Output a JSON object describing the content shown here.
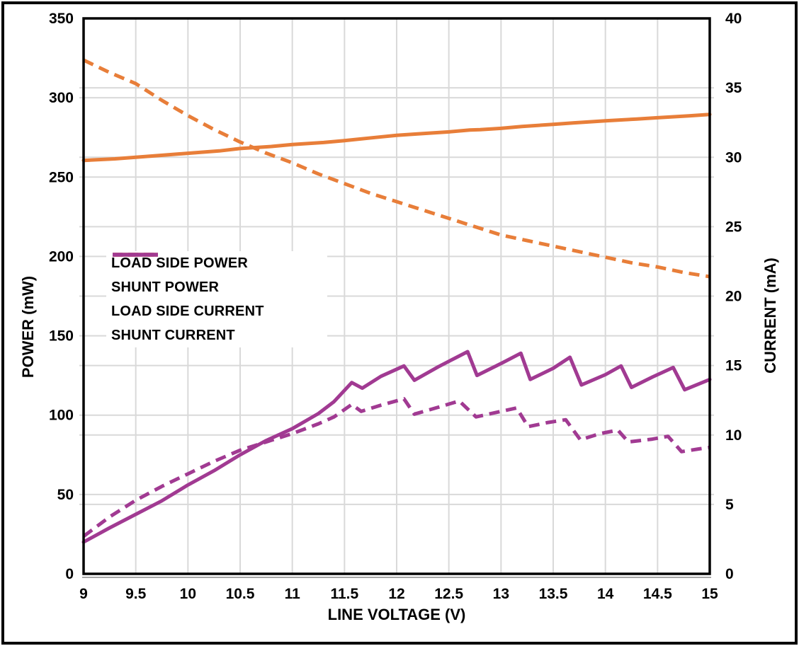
{
  "chart_data": {
    "type": "line",
    "title": "",
    "xlabel": "LINE VOLTAGE (V)",
    "x_range": [
      9,
      15
    ],
    "x_ticks": [
      "9",
      "9.5",
      "10",
      "10.5",
      "11",
      "11.5",
      "12",
      "12.5",
      "13",
      "13.5",
      "14",
      "14.5",
      "15"
    ],
    "y_left": {
      "label": "POWER (mW)",
      "range": [
        0,
        350
      ],
      "ticks": [
        0,
        50,
        100,
        150,
        200,
        250,
        300,
        350
      ]
    },
    "y_right": {
      "label": "CURRENT (mA)",
      "range": [
        0,
        40
      ],
      "ticks": [
        0,
        5,
        10,
        15,
        20,
        25,
        30,
        35,
        40
      ]
    },
    "grid": true,
    "legend_position": "center-left",
    "series": [
      {
        "name": "LOAD SIDE POWER",
        "axis": "left",
        "style": "solid",
        "color": "#E87E39",
        "points": [
          [
            9,
            260.5
          ],
          [
            9.3,
            261.5
          ],
          [
            9.5,
            262.5
          ],
          [
            9.8,
            264
          ],
          [
            10,
            265
          ],
          [
            10.3,
            266.5
          ],
          [
            10.5,
            268
          ],
          [
            10.8,
            269.3
          ],
          [
            11,
            270.5
          ],
          [
            11.3,
            271.8
          ],
          [
            11.5,
            273
          ],
          [
            11.8,
            275
          ],
          [
            12,
            276.3
          ],
          [
            12.2,
            277.2
          ],
          [
            12.5,
            278.5
          ],
          [
            12.7,
            279.7
          ],
          [
            12.8,
            279.9
          ],
          [
            13,
            280.7
          ],
          [
            13.2,
            281.9
          ],
          [
            13.5,
            283.2
          ],
          [
            13.7,
            284.2
          ],
          [
            14,
            285.5
          ],
          [
            14.3,
            286.6
          ],
          [
            14.5,
            287.4
          ],
          [
            14.8,
            288.6
          ],
          [
            15,
            289.5
          ]
        ]
      },
      {
        "name": "SHUNT POWER",
        "axis": "left",
        "style": "solid",
        "color": "#A13A92",
        "points": [
          [
            9,
            20
          ],
          [
            9.25,
            29
          ],
          [
            9.5,
            37.5
          ],
          [
            9.75,
            46
          ],
          [
            10,
            56
          ],
          [
            10.25,
            65
          ],
          [
            10.5,
            75
          ],
          [
            10.75,
            84
          ],
          [
            11,
            91.5
          ],
          [
            11.25,
            101
          ],
          [
            11.4,
            108.5
          ],
          [
            11.57,
            120.5
          ],
          [
            11.67,
            117
          ],
          [
            11.85,
            124.5
          ],
          [
            12.07,
            131
          ],
          [
            12.17,
            122
          ],
          [
            12.4,
            130.5
          ],
          [
            12.68,
            140
          ],
          [
            12.77,
            125
          ],
          [
            13,
            132.5
          ],
          [
            13.19,
            139
          ],
          [
            13.28,
            122.5
          ],
          [
            13.5,
            129.5
          ],
          [
            13.66,
            136.5
          ],
          [
            13.77,
            119
          ],
          [
            14,
            125.5
          ],
          [
            14.15,
            131
          ],
          [
            14.25,
            117.5
          ],
          [
            14.45,
            124
          ],
          [
            14.65,
            130
          ],
          [
            14.76,
            116
          ],
          [
            15,
            122.5
          ]
        ]
      },
      {
        "name": "LOAD SIDE CURRENT",
        "axis": "right",
        "style": "dashed",
        "color": "#E87E39",
        "points": [
          [
            9,
            37.0
          ],
          [
            9.25,
            36.1
          ],
          [
            9.5,
            35.3
          ],
          [
            9.75,
            34.1
          ],
          [
            10,
            33.0
          ],
          [
            10.25,
            32.0
          ],
          [
            10.5,
            31.1
          ],
          [
            10.75,
            30.3
          ],
          [
            11,
            29.6
          ],
          [
            11.25,
            28.8
          ],
          [
            11.5,
            28.1
          ],
          [
            11.75,
            27.4
          ],
          [
            12,
            26.8
          ],
          [
            12.25,
            26.2
          ],
          [
            12.5,
            25.6
          ],
          [
            12.75,
            25.0
          ],
          [
            13,
            24.4
          ],
          [
            13.25,
            24.0
          ],
          [
            13.5,
            23.6
          ],
          [
            13.75,
            23.2
          ],
          [
            14,
            22.8
          ],
          [
            14.25,
            22.4
          ],
          [
            14.5,
            22.1
          ],
          [
            14.75,
            21.7
          ],
          [
            15,
            21.4
          ]
        ]
      },
      {
        "name": "SHUNT CURRENT",
        "axis": "right",
        "style": "dashed",
        "color": "#A13A92",
        "points": [
          [
            9,
            2.7
          ],
          [
            9.25,
            4.1
          ],
          [
            9.5,
            5.3
          ],
          [
            9.75,
            6.3
          ],
          [
            10,
            7.2
          ],
          [
            10.25,
            8.1
          ],
          [
            10.5,
            8.9
          ],
          [
            10.75,
            9.5
          ],
          [
            11,
            10.1
          ],
          [
            11.25,
            10.8
          ],
          [
            11.4,
            11.3
          ],
          [
            11.57,
            12.2
          ],
          [
            11.66,
            11.7
          ],
          [
            11.85,
            12.15
          ],
          [
            12.07,
            12.6
          ],
          [
            12.17,
            11.5
          ],
          [
            12.4,
            12.0
          ],
          [
            12.6,
            12.45
          ],
          [
            12.76,
            11.3
          ],
          [
            13,
            11.7
          ],
          [
            13.15,
            11.95
          ],
          [
            13.26,
            10.6
          ],
          [
            13.45,
            10.9
          ],
          [
            13.62,
            11.1
          ],
          [
            13.76,
            9.65
          ],
          [
            13.95,
            10.1
          ],
          [
            14.12,
            10.35
          ],
          [
            14.22,
            9.5
          ],
          [
            14.45,
            9.7
          ],
          [
            14.6,
            9.9
          ],
          [
            14.73,
            8.8
          ],
          [
            14.9,
            9.0
          ],
          [
            15,
            9.1
          ]
        ]
      }
    ]
  },
  "colors": {
    "orange": "#E87E39",
    "purple": "#A13A92",
    "grid": "#D9D9D9",
    "axis": "#000000",
    "sub_axis_line": "#A6A6A6",
    "background": "#FFFFFF"
  }
}
